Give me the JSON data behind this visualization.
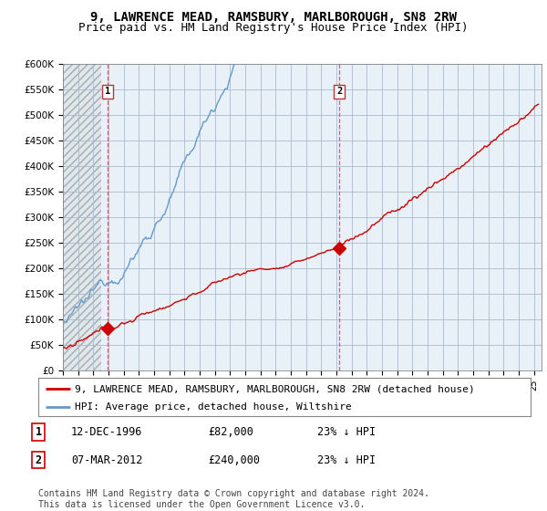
{
  "title": "9, LAWRENCE MEAD, RAMSBURY, MARLBOROUGH, SN8 2RW",
  "subtitle": "Price paid vs. HM Land Registry's House Price Index (HPI)",
  "ylim": [
    0,
    600000
  ],
  "xlim_start": 1994.0,
  "xlim_end": 2025.5,
  "red_line_color": "#cc0000",
  "blue_line_color": "#6699cc",
  "point1_x": 1996.95,
  "point1_y": 82000,
  "point2_x": 2012.18,
  "point2_y": 240000,
  "marker1_label": "1",
  "marker2_label": "2",
  "legend_red_label": "9, LAWRENCE MEAD, RAMSBURY, MARLBOROUGH, SN8 2RW (detached house)",
  "legend_blue_label": "HPI: Average price, detached house, Wiltshire",
  "table_rows": [
    [
      "1",
      "12-DEC-1996",
      "£82,000",
      "23% ↓ HPI"
    ],
    [
      "2",
      "07-MAR-2012",
      "£240,000",
      "23% ↓ HPI"
    ]
  ],
  "footnote": "Contains HM Land Registry data © Crown copyright and database right 2024.\nThis data is licensed under the Open Government Licence v3.0.",
  "bg_color": "#ffffff",
  "plot_bg_color": "#e8f0f8",
  "grid_color": "#aabbcc",
  "hatch_bg_color": "#dde8ee",
  "dashed_vline_color": "#dd4444",
  "title_fontsize": 10,
  "subtitle_fontsize": 9,
  "tick_fontsize": 7.5,
  "legend_fontsize": 8,
  "table_fontsize": 8.5,
  "footnote_fontsize": 7
}
